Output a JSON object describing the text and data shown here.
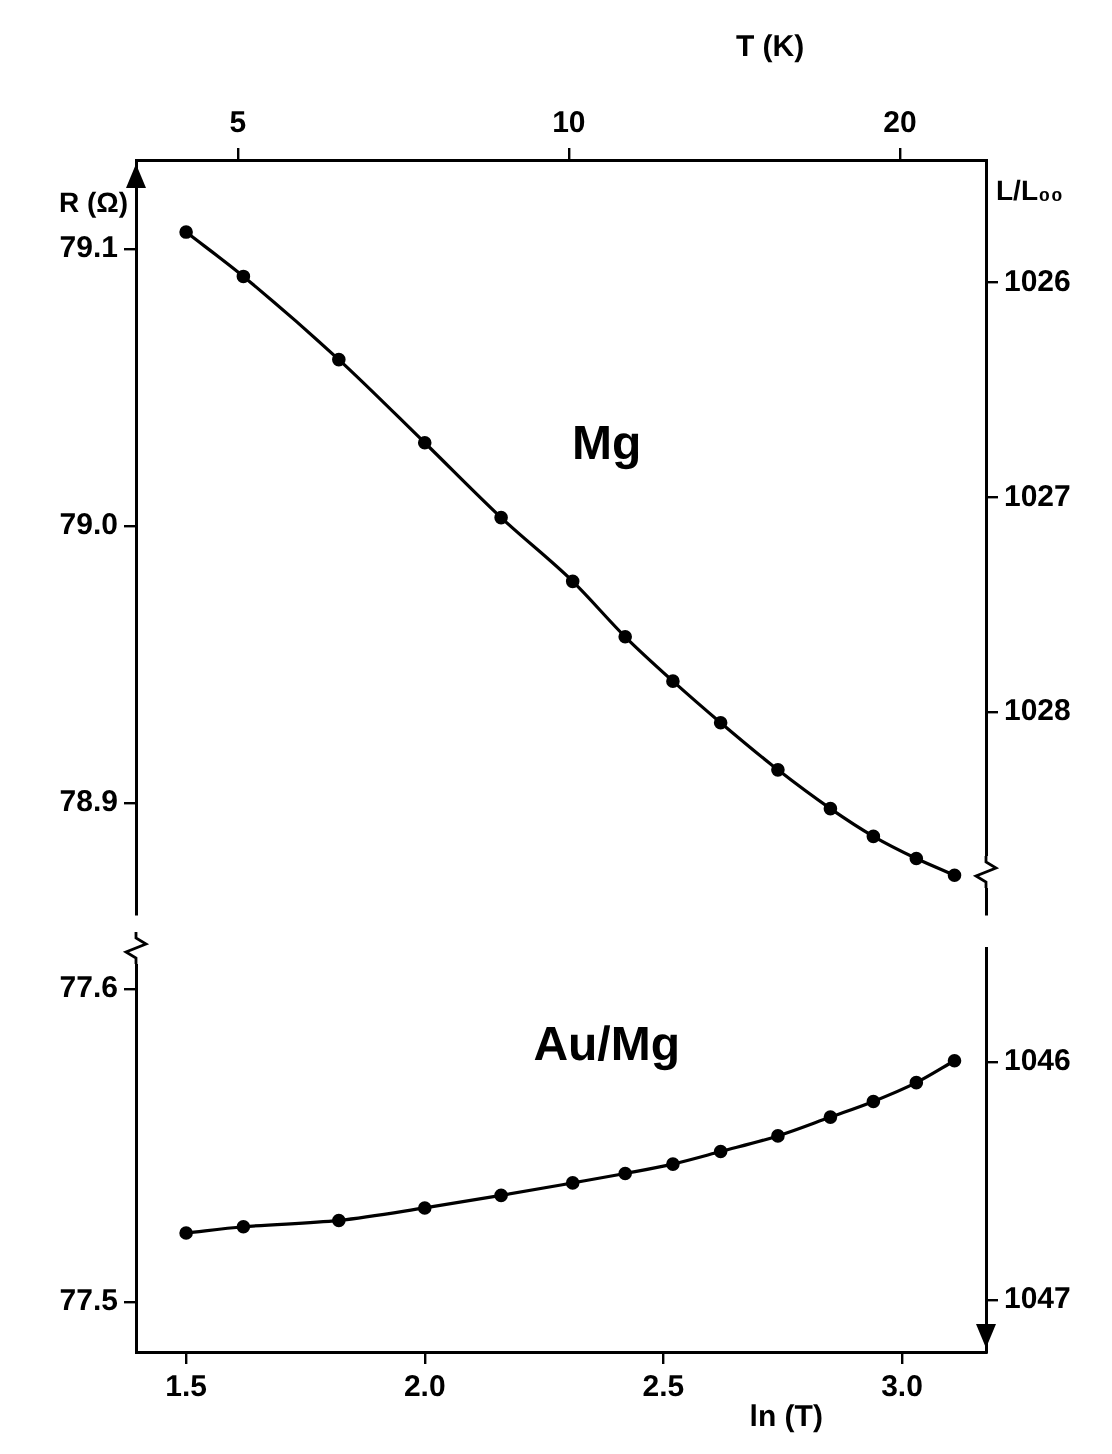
{
  "chart_data": [
    {
      "type": "line",
      "ylabel": "R (Ω)",
      "y2label": "L/L₀₀",
      "x2label": "T (K)",
      "x": [
        1.5,
        1.62,
        1.82,
        2.0,
        2.16,
        2.31,
        2.42,
        2.52,
        2.62,
        2.74,
        2.85,
        2.94,
        3.03,
        3.11
      ],
      "series": [
        {
          "name": "Mg",
          "color": "#000000",
          "values": [
            79.106,
            79.09,
            79.06,
            79.03,
            79.003,
            78.98,
            78.96,
            78.944,
            78.929,
            78.912,
            78.898,
            78.888,
            78.88,
            78.874
          ]
        }
      ],
      "xlim": [
        1.395,
        3.176
      ],
      "x2lim": [
        4.04,
        23.95
      ],
      "x2ticks": [
        5,
        10,
        20
      ],
      "ylim": [
        78.86,
        79.132
      ],
      "yticks": [
        78.9,
        {
          "value": 79,
          "label": "79.0"
        },
        79.1
      ],
      "y2lim": [
        1028.94,
        1025.43
      ],
      "y2ticks": [
        1026,
        1027,
        1028
      ],
      "tick_labels": "y",
      "log": "x2",
      "grid": false,
      "legend": false,
      "marker": "circle",
      "line_style": "solid"
    },
    {
      "type": "line",
      "xlabel": "ln (T)",
      "x": [
        1.5,
        1.62,
        1.82,
        2.0,
        2.16,
        2.31,
        2.42,
        2.52,
        2.62,
        2.74,
        2.85,
        2.94,
        3.03,
        3.11
      ],
      "series": [
        {
          "name": "Au/Mg",
          "color": "#000000",
          "values": [
            77.522,
            77.524,
            77.526,
            77.53,
            77.534,
            77.538,
            77.541,
            77.544,
            77.548,
            77.553,
            77.559,
            77.564,
            77.57,
            77.577
          ]
        }
      ],
      "xlim": [
        1.395,
        3.176
      ],
      "xticks": [
        1.5,
        {
          "value": 2,
          "label": "2.0"
        },
        2.5,
        {
          "value": 3,
          "label": "3.0"
        }
      ],
      "ylim": [
        77.484,
        77.613
      ],
      "yticks": [
        77.5,
        77.6
      ],
      "y2lim": [
        1047.22,
        1045.52
      ],
      "y2ticks": [
        1046,
        1047
      ],
      "grid": false,
      "legend": false,
      "marker": "circle",
      "line_style": "solid"
    }
  ]
}
